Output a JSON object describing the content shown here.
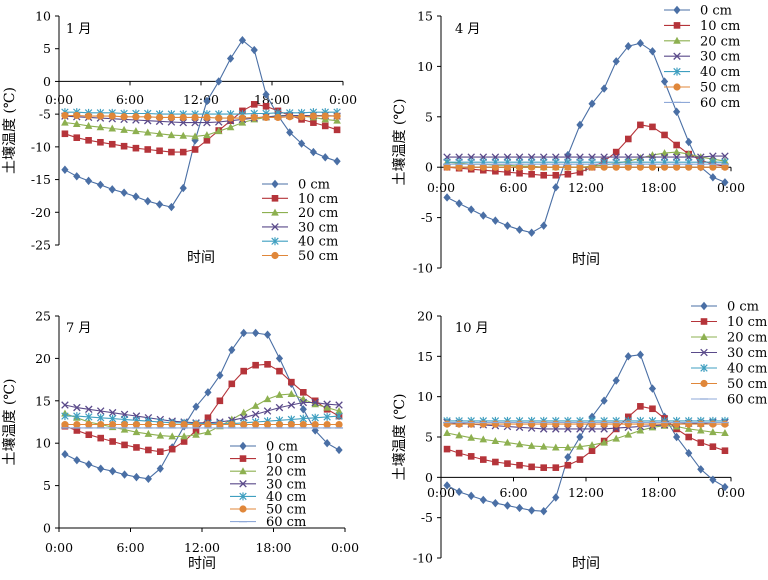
{
  "x_axis_label": "时间",
  "y_axis_label": "土壤温度 (℃)",
  "series_styles": [
    {
      "color": "#4a6fa5",
      "marker": "diamond"
    },
    {
      "color": "#b5343a",
      "marker": "square"
    },
    {
      "color": "#8db050",
      "marker": "triangle"
    },
    {
      "color": "#5a4a8a",
      "marker": "x"
    },
    {
      "color": "#3f9fc0",
      "marker": "star"
    },
    {
      "color": "#e0873a",
      "marker": "circle"
    },
    {
      "color": "#8fa9d8",
      "marker": "plus"
    }
  ],
  "chart_data": [
    {
      "type": "line",
      "panel_label": "1 月",
      "ylim": [
        -25,
        10
      ],
      "yticks": [
        -25,
        -20,
        -15,
        -10,
        -5,
        0,
        5,
        10
      ],
      "x_axis_at": 0,
      "xtick_labels": [
        "0:00",
        "6:00",
        "12:00",
        "18:00",
        "0:00"
      ],
      "x": [
        0,
        1,
        2,
        3,
        4,
        5,
        6,
        7,
        8,
        9,
        10,
        11,
        12,
        13,
        14,
        15,
        16,
        17,
        18,
        19,
        20,
        21,
        22,
        23
      ],
      "legend_position": "bottom-right",
      "series": [
        {
          "name": "0 cm",
          "values": [
            -13.5,
            -14.5,
            -15.2,
            -15.8,
            -16.5,
            -17,
            -17.6,
            -18.3,
            -18.8,
            -19.2,
            -16.3,
            -9,
            -3,
            0,
            3.5,
            6.3,
            4.8,
            -2,
            -5.2,
            -7.8,
            -9.5,
            -10.8,
            -11.6,
            -12.2
          ]
        },
        {
          "name": "10 cm",
          "values": [
            -8,
            -8.6,
            -9,
            -9.3,
            -9.6,
            -9.9,
            -10.2,
            -10.4,
            -10.6,
            -10.8,
            -10.8,
            -10.4,
            -9,
            -7.5,
            -6,
            -4.5,
            -3.5,
            -3.8,
            -4.5,
            -5.2,
            -5.8,
            -6.3,
            -6.8,
            -7.4
          ]
        },
        {
          "name": "20 cm",
          "values": [
            -6.3,
            -6.5,
            -6.8,
            -7,
            -7.2,
            -7.4,
            -7.6,
            -7.8,
            -8,
            -8.2,
            -8.3,
            -8.4,
            -8.2,
            -7.6,
            -7,
            -6.3,
            -5.8,
            -5.5,
            -5.2,
            -5.2,
            -5.3,
            -5.5,
            -5.8,
            -6
          ]
        },
        {
          "name": "30 cm",
          "values": [
            -5.3,
            -5.4,
            -5.5,
            -5.6,
            -5.7,
            -5.8,
            -5.9,
            -6,
            -6.1,
            -6.2,
            -6.3,
            -6.3,
            -6.3,
            -6.2,
            -6,
            -5.8,
            -5.6,
            -5.4,
            -5.3,
            -5.2,
            -5.2,
            -5.2,
            -5.2,
            -5.3
          ]
        },
        {
          "name": "40 cm",
          "values": [
            -4.7,
            -4.7,
            -4.8,
            -4.8,
            -4.8,
            -4.9,
            -4.9,
            -4.9,
            -5,
            -5,
            -5,
            -5,
            -5,
            -5,
            -5,
            -5,
            -4.9,
            -4.9,
            -4.8,
            -4.8,
            -4.8,
            -4.7,
            -4.7,
            -4.7
          ]
        },
        {
          "name": "50 cm",
          "values": [
            -5.2,
            -5.2,
            -5.3,
            -5.3,
            -5.3,
            -5.4,
            -5.4,
            -5.4,
            -5.5,
            -5.5,
            -5.5,
            -5.5,
            -5.5,
            -5.6,
            -5.6,
            -5.6,
            -5.5,
            -5.5,
            -5.5,
            -5.4,
            -5.4,
            -5.3,
            -5.3,
            -5.3
          ]
        }
      ]
    },
    {
      "type": "line",
      "panel_label": "4 月",
      "ylim": [
        -10,
        15
      ],
      "yticks": [
        -10,
        -5,
        0,
        5,
        10,
        15
      ],
      "x_axis_at": 0,
      "xtick_labels": [
        "0:00",
        "6:00",
        "12:00",
        "18:00",
        "0:00"
      ],
      "x": [
        0,
        1,
        2,
        3,
        4,
        5,
        6,
        7,
        8,
        9,
        10,
        11,
        12,
        13,
        14,
        15,
        16,
        17,
        18,
        19,
        20,
        21,
        22,
        23
      ],
      "legend_position": "top-right",
      "series": [
        {
          "name": "0 cm",
          "values": [
            -3,
            -3.6,
            -4.2,
            -4.8,
            -5.3,
            -5.8,
            -6.2,
            -6.5,
            -5.8,
            -2,
            1.2,
            4.2,
            6.3,
            7.8,
            10.5,
            12,
            12.3,
            11.5,
            8.5,
            5.5,
            2.5,
            0,
            -1,
            -1.5
          ]
        },
        {
          "name": "10 cm",
          "values": [
            0,
            -0.1,
            -0.2,
            -0.3,
            -0.4,
            -0.5,
            -0.6,
            -0.7,
            -0.8,
            -0.8,
            -0.7,
            -0.5,
            0,
            0.6,
            1.5,
            2.8,
            4.2,
            4,
            3.2,
            2.2,
            1.3,
            0.7,
            0.3,
            0.1
          ]
        },
        {
          "name": "20 cm",
          "values": [
            0.5,
            0.4,
            0.3,
            0.3,
            0.2,
            0.2,
            0.1,
            0.1,
            0,
            0,
            0,
            0,
            0.1,
            0.2,
            0.4,
            0.6,
            0.9,
            1.2,
            1.4,
            1.5,
            1.3,
            1,
            0.8,
            0.6
          ]
        },
        {
          "name": "30 cm",
          "values": [
            1,
            1,
            1,
            1,
            1,
            1,
            1,
            1,
            1,
            1,
            1,
            1,
            1,
            1,
            1,
            1,
            1,
            1,
            1,
            1,
            1,
            1,
            1.1,
            1.1
          ]
        },
        {
          "name": "40 cm",
          "values": [
            0.5,
            0.5,
            0.5,
            0.5,
            0.5,
            0.5,
            0.5,
            0.5,
            0.5,
            0.5,
            0.5,
            0.5,
            0.5,
            0.5,
            0.5,
            0.5,
            0.5,
            0.5,
            0.5,
            0.5,
            0.5,
            0.5,
            0.5,
            0.5
          ]
        },
        {
          "name": "50 cm",
          "values": [
            0,
            0,
            0,
            0,
            0,
            0,
            0,
            0,
            0,
            0,
            0,
            0,
            0,
            0,
            0,
            0,
            0,
            0,
            0,
            0,
            0,
            0,
            0,
            0
          ]
        },
        {
          "name": "60 cm",
          "values": [
            0.3,
            0.3,
            0.3,
            0.3,
            0.3,
            0.3,
            0.3,
            0.3,
            0.3,
            0.3,
            0.3,
            0.3,
            0.3,
            0.3,
            0.3,
            0.3,
            0.3,
            0.3,
            0.3,
            0.3,
            0.3,
            0.3,
            0.3,
            0.3
          ]
        }
      ]
    },
    {
      "type": "line",
      "panel_label": "7 月",
      "ylim": [
        0,
        25
      ],
      "yticks": [
        0,
        5,
        10,
        15,
        20,
        25
      ],
      "x_axis_at": 0,
      "xtick_labels": [
        "0:00",
        "6:00",
        "12:00",
        "18:00",
        "0:00"
      ],
      "x": [
        0,
        1,
        2,
        3,
        4,
        5,
        6,
        7,
        8,
        9,
        10,
        11,
        12,
        13,
        14,
        15,
        16,
        17,
        18,
        19,
        20,
        21,
        22,
        23
      ],
      "legend_position": "bottom-right",
      "series": [
        {
          "name": "0 cm",
          "values": [
            8.7,
            8,
            7.5,
            7,
            6.7,
            6.3,
            6,
            5.8,
            7,
            9.5,
            12,
            14.3,
            16,
            18,
            21,
            23,
            23,
            22.8,
            20,
            17,
            14,
            11.5,
            10,
            9.2
          ]
        },
        {
          "name": "10 cm",
          "values": [
            12,
            11.5,
            11,
            10.6,
            10.2,
            9.8,
            9.5,
            9.2,
            9,
            9.3,
            10.2,
            11.5,
            13,
            15,
            17,
            18.5,
            19.2,
            19.3,
            18.5,
            17.2,
            16,
            15,
            14,
            13.2
          ]
        },
        {
          "name": "20 cm",
          "values": [
            13.5,
            13,
            12.5,
            12.2,
            11.9,
            11.6,
            11.3,
            11.1,
            10.9,
            10.8,
            10.8,
            11,
            11.3,
            12,
            12.8,
            13.6,
            14.4,
            15.2,
            15.7,
            15.8,
            15.2,
            14.6,
            14.2,
            13.8
          ]
        },
        {
          "name": "30 cm",
          "values": [
            14.5,
            14.2,
            14,
            13.8,
            13.6,
            13.4,
            13.2,
            13,
            12.8,
            12.6,
            12.5,
            12.4,
            12.4,
            12.5,
            12.7,
            13,
            13.4,
            13.8,
            14.2,
            14.5,
            14.8,
            14.8,
            14.6,
            14.5
          ]
        },
        {
          "name": "40 cm",
          "values": [
            13.2,
            13.2,
            13.1,
            13,
            12.9,
            12.8,
            12.7,
            12.6,
            12.5,
            12.4,
            12.4,
            12.3,
            12.3,
            12.3,
            12.3,
            12.4,
            12.5,
            12.6,
            12.7,
            12.8,
            12.9,
            13,
            13.1,
            13.2
          ]
        },
        {
          "name": "50 cm",
          "values": [
            12.2,
            12.2,
            12.2,
            12.2,
            12.2,
            12.2,
            12.2,
            12.2,
            12.2,
            12.2,
            12.2,
            12.2,
            12.2,
            12.2,
            12.2,
            12.2,
            12.2,
            12.2,
            12.2,
            12.2,
            12.2,
            12.2,
            12.2,
            12.2
          ]
        },
        {
          "name": "60 cm",
          "values": [
            11.8,
            11.8,
            11.8,
            11.8,
            11.8,
            11.8,
            11.8,
            11.8,
            11.8,
            11.8,
            11.8,
            11.8,
            11.8,
            11.8,
            11.8,
            11.8,
            11.8,
            11.8,
            11.8,
            11.8,
            11.8,
            11.8,
            11.8,
            11.8
          ]
        }
      ]
    },
    {
      "type": "line",
      "panel_label": "10 月",
      "ylim": [
        -10,
        20
      ],
      "yticks": [
        -10,
        -5,
        0,
        5,
        10,
        15,
        20
      ],
      "x_axis_at": 0,
      "xtick_labels": [
        "0:00",
        "6:00",
        "12:00",
        "18:00",
        "0:00"
      ],
      "x": [
        0,
        1,
        2,
        3,
        4,
        5,
        6,
        7,
        8,
        9,
        10,
        11,
        12,
        13,
        14,
        15,
        16,
        17,
        18,
        19,
        20,
        21,
        22,
        23
      ],
      "legend_position": "top-right",
      "series": [
        {
          "name": "0 cm",
          "values": [
            -1,
            -1.8,
            -2.3,
            -2.8,
            -3.2,
            -3.5,
            -3.8,
            -4.1,
            -4.2,
            -2.5,
            2.5,
            5,
            7.5,
            9.5,
            12,
            15,
            15.2,
            11,
            7.5,
            5,
            3,
            1,
            -0.3,
            -1.2
          ]
        },
        {
          "name": "10 cm",
          "values": [
            3.5,
            3,
            2.6,
            2.2,
            1.9,
            1.7,
            1.5,
            1.3,
            1.2,
            1.2,
            1.5,
            2.2,
            3.3,
            4.5,
            6,
            7.5,
            8.8,
            8.5,
            7.3,
            6,
            5,
            4.3,
            3.8,
            3.3
          ]
        },
        {
          "name": "20 cm",
          "values": [
            5.5,
            5.2,
            4.9,
            4.7,
            4.5,
            4.3,
            4.1,
            3.9,
            3.8,
            3.7,
            3.7,
            3.8,
            4,
            4.3,
            4.8,
            5.3,
            5.8,
            6.2,
            6.4,
            6.3,
            6,
            5.8,
            5.6,
            5.5
          ]
        },
        {
          "name": "30 cm",
          "values": [
            6.8,
            6.7,
            6.6,
            6.5,
            6.4,
            6.3,
            6.2,
            6.1,
            6,
            6,
            6,
            6,
            6,
            6,
            6.1,
            6.2,
            6.3,
            6.4,
            6.5,
            6.6,
            6.7,
            6.7,
            6.8,
            6.8
          ]
        },
        {
          "name": "40 cm",
          "values": [
            7,
            7,
            7,
            7,
            7,
            7,
            7,
            7,
            7,
            7,
            7,
            7,
            7,
            7,
            7,
            7,
            7,
            7,
            7,
            7,
            7,
            7,
            7,
            7
          ]
        },
        {
          "name": "50 cm",
          "values": [
            6.6,
            6.6,
            6.6,
            6.6,
            6.6,
            6.6,
            6.6,
            6.6,
            6.6,
            6.6,
            6.6,
            6.6,
            6.6,
            6.6,
            6.6,
            6.6,
            6.6,
            6.6,
            6.6,
            6.6,
            6.6,
            6.6,
            6.6,
            6.6
          ]
        },
        {
          "name": "60 cm",
          "values": [
            6.8,
            6.8,
            6.8,
            6.8,
            6.8,
            6.8,
            6.8,
            6.8,
            6.8,
            6.8,
            6.8,
            6.8,
            6.8,
            6.8,
            6.8,
            6.8,
            6.8,
            6.8,
            6.8,
            6.8,
            6.8,
            6.8,
            6.8,
            6.8
          ]
        }
      ]
    }
  ]
}
